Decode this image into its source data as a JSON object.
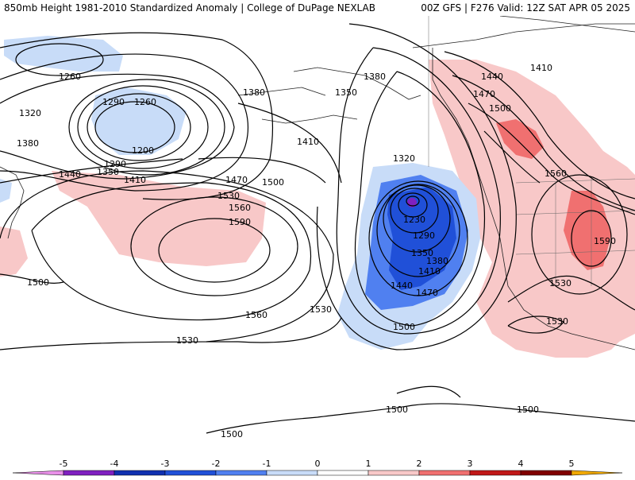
{
  "header": {
    "title_left": "850mb Height 1981-2010 Standardized Anomaly | College of DuPage NEXLAB",
    "title_right": "00Z GFS | F276 Valid: 12Z SAT APR 05 2025"
  },
  "contour_labels": [
    "1260",
    "1290",
    "1260",
    "1200",
    "1320",
    "1380",
    "1290",
    "1350",
    "1410",
    "1440",
    "1380",
    "1350",
    "1410",
    "1380",
    "1320",
    "1470",
    "1500",
    "1530",
    "1560",
    "1590",
    "1230",
    "1290",
    "1350",
    "1380",
    "1410",
    "1440",
    "1470",
    "1500",
    "1500",
    "1530",
    "1560",
    "1530",
    "1440",
    "1470",
    "1500",
    "1410",
    "1560",
    "1590",
    "1530",
    "1530",
    "1500",
    "1500",
    "1500"
  ],
  "legend": {
    "ticks": [
      "-5",
      "-4",
      "-3",
      "-2",
      "-1",
      "0",
      "1",
      "2",
      "3",
      "4",
      "5"
    ],
    "colors": [
      "#e890e8",
      "#8020c0",
      "#1030b0",
      "#2050d8",
      "#5080f0",
      "#c8dcf8",
      "#ffffff",
      "#f8c8c8",
      "#f07070",
      "#c01818",
      "#800000",
      "#f0a800"
    ]
  }
}
